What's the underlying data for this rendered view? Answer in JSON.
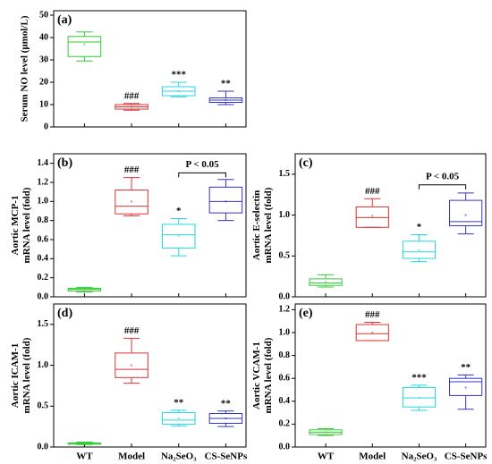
{
  "chart_data": [
    {
      "type": "box",
      "panel": "(a)",
      "ylabel": [
        "Serum NO level (μmol/L)"
      ],
      "colors": [
        "#33cc33",
        "#dd3333",
        "#22d8e0",
        "#3333cc"
      ],
      "boxes": [
        {
          "whislo": 29.5,
          "q1": 31.5,
          "med": 38,
          "q3": 40.5,
          "whishi": 42.5,
          "mean": 37
        },
        {
          "whislo": 7.5,
          "q1": 8,
          "med": 9,
          "q3": 10,
          "whishi": 10.5,
          "mean": 9
        },
        {
          "whislo": 13.5,
          "q1": 14,
          "med": 16,
          "q3": 18,
          "whishi": 20,
          "mean": 16
        },
        {
          "whislo": 10,
          "q1": 11,
          "med": 12,
          "q3": 13,
          "whishi": 16,
          "mean": 12
        }
      ],
      "annotations": [
        null,
        "###",
        "***",
        "**"
      ],
      "ylim": [
        0,
        52
      ],
      "yticks": [
        0,
        10,
        20,
        30,
        40,
        50
      ]
    },
    {
      "type": "box",
      "panel": "(b)",
      "ylabel": [
        "Aortic MCP-1",
        "mRNA level (fold)"
      ],
      "colors": [
        "#33cc33",
        "#dd3333",
        "#22d8e0",
        "#3333cc"
      ],
      "boxes": [
        {
          "whislo": 0.05,
          "q1": 0.06,
          "med": 0.08,
          "q3": 0.09,
          "whishi": 0.1,
          "mean": 0.08
        },
        {
          "whislo": 0.85,
          "q1": 0.87,
          "med": 0.95,
          "q3": 1.12,
          "whishi": 1.25,
          "mean": 1.0
        },
        {
          "whislo": 0.43,
          "q1": 0.51,
          "med": 0.65,
          "q3": 0.76,
          "whishi": 0.82,
          "mean": 0.64
        },
        {
          "whislo": 0.8,
          "q1": 0.88,
          "med": 1.0,
          "q3": 1.15,
          "whishi": 1.23,
          "mean": 1.0
        }
      ],
      "annotations": [
        null,
        "###",
        "*",
        null
      ],
      "bracket": {
        "text": "P < 0.05",
        "y": 1.3
      },
      "ylim": [
        0,
        1.5
      ],
      "yticks": [
        {
          "value": 0,
          "label": "0.0"
        },
        {
          "value": 0.2,
          "label": "0.2"
        },
        {
          "value": 0.4,
          "label": "0.4"
        },
        {
          "value": 0.6,
          "label": "0.6"
        },
        {
          "value": 0.8,
          "label": "0.8"
        },
        {
          "value": 1.0,
          "label": "1.0"
        },
        {
          "value": 1.2,
          "label": "1.2"
        },
        {
          "value": 1.4,
          "label": "1.4"
        }
      ]
    },
    {
      "type": "box",
      "panel": "(c)",
      "ylabel": [
        "Aortic E-selectin",
        "mRNA level (fold)"
      ],
      "colors": [
        "#33cc33",
        "#dd3333",
        "#22d8e0",
        "#3333cc"
      ],
      "boxes": [
        {
          "whislo": 0.12,
          "q1": 0.14,
          "med": 0.17,
          "q3": 0.22,
          "whishi": 0.27,
          "mean": 0.18
        },
        {
          "whislo": 0.85,
          "q1": 0.85,
          "med": 0.97,
          "q3": 1.1,
          "whishi": 1.2,
          "mean": 0.99
        },
        {
          "whislo": 0.43,
          "q1": 0.47,
          "med": 0.55,
          "q3": 0.68,
          "whishi": 0.76,
          "mean": 0.57
        },
        {
          "whislo": 0.77,
          "q1": 0.87,
          "med": 0.92,
          "q3": 1.18,
          "whishi": 1.27,
          "mean": 1.0
        }
      ],
      "annotations": [
        null,
        "###",
        "*",
        null
      ],
      "bracket": {
        "text": "P < 0.05",
        "y": 1.37
      },
      "ylim": [
        0,
        1.75
      ],
      "yticks": [
        {
          "value": 0,
          "label": "0.0"
        },
        {
          "value": 0.5,
          "label": "0.5"
        },
        {
          "value": 1.0,
          "label": "1.0"
        },
        {
          "value": 1.5,
          "label": "1.5"
        }
      ]
    },
    {
      "type": "box",
      "panel": "(d)",
      "ylabel": [
        "Aortic ICAM-1",
        "mRNA level (fold)"
      ],
      "categories": [
        "WT",
        "Model",
        "Na₂SeO₃",
        "CS-SeNPs"
      ],
      "colors": [
        "#33cc33",
        "#dd3333",
        "#22d8e0",
        "#3333cc"
      ],
      "boxes": [
        {
          "whislo": 0.03,
          "q1": 0.035,
          "med": 0.04,
          "q3": 0.05,
          "whishi": 0.06,
          "mean": 0.04
        },
        {
          "whislo": 0.78,
          "q1": 0.85,
          "med": 0.95,
          "q3": 1.15,
          "whishi": 1.33,
          "mean": 1.0
        },
        {
          "whislo": 0.26,
          "q1": 0.28,
          "med": 0.33,
          "q3": 0.42,
          "whishi": 0.45,
          "mean": 0.35
        },
        {
          "whislo": 0.25,
          "q1": 0.29,
          "med": 0.35,
          "q3": 0.41,
          "whishi": 0.44,
          "mean": 0.35
        }
      ],
      "annotations": [
        null,
        "###",
        "**",
        "**"
      ],
      "ylim": [
        0,
        1.75
      ],
      "yticks": [
        {
          "value": 0,
          "label": "0.0"
        },
        {
          "value": 0.5,
          "label": "0.5"
        },
        {
          "value": 1.0,
          "label": "1.0"
        },
        {
          "value": 1.5,
          "label": "1.5"
        }
      ]
    },
    {
      "type": "box",
      "panel": "(e)",
      "ylabel": [
        "Aortic VCAM-1",
        "mRNA level (fold)"
      ],
      "categories": [
        "WT",
        "Model",
        "Na₂SeO₃",
        "CS-SeNPs"
      ],
      "colors": [
        "#33cc33",
        "#dd3333",
        "#22d8e0",
        "#3333cc"
      ],
      "boxes": [
        {
          "whislo": 0.1,
          "q1": 0.11,
          "med": 0.13,
          "q3": 0.15,
          "whishi": 0.16,
          "mean": 0.13
        },
        {
          "whislo": 0.93,
          "q1": 0.93,
          "med": 0.99,
          "q3": 1.07,
          "whishi": 1.09,
          "mean": 1.0
        },
        {
          "whislo": 0.32,
          "q1": 0.35,
          "med": 0.43,
          "q3": 0.52,
          "whishi": 0.54,
          "mean": 0.43
        },
        {
          "whislo": 0.33,
          "q1": 0.45,
          "med": 0.57,
          "q3": 0.6,
          "whishi": 0.63,
          "mean": 0.52
        }
      ],
      "annotations": [
        null,
        "###",
        "***",
        "**"
      ],
      "ylim": [
        0,
        1.25
      ],
      "yticks": [
        {
          "value": 0,
          "label": "0.0"
        },
        {
          "value": 0.2,
          "label": "0.2"
        },
        {
          "value": 0.4,
          "label": "0.4"
        },
        {
          "value": 0.6,
          "label": "0.6"
        },
        {
          "value": 0.8,
          "label": "0.8"
        },
        {
          "value": 1.0,
          "label": "1.0"
        },
        {
          "value": 1.2,
          "label": "1.2"
        }
      ]
    }
  ]
}
